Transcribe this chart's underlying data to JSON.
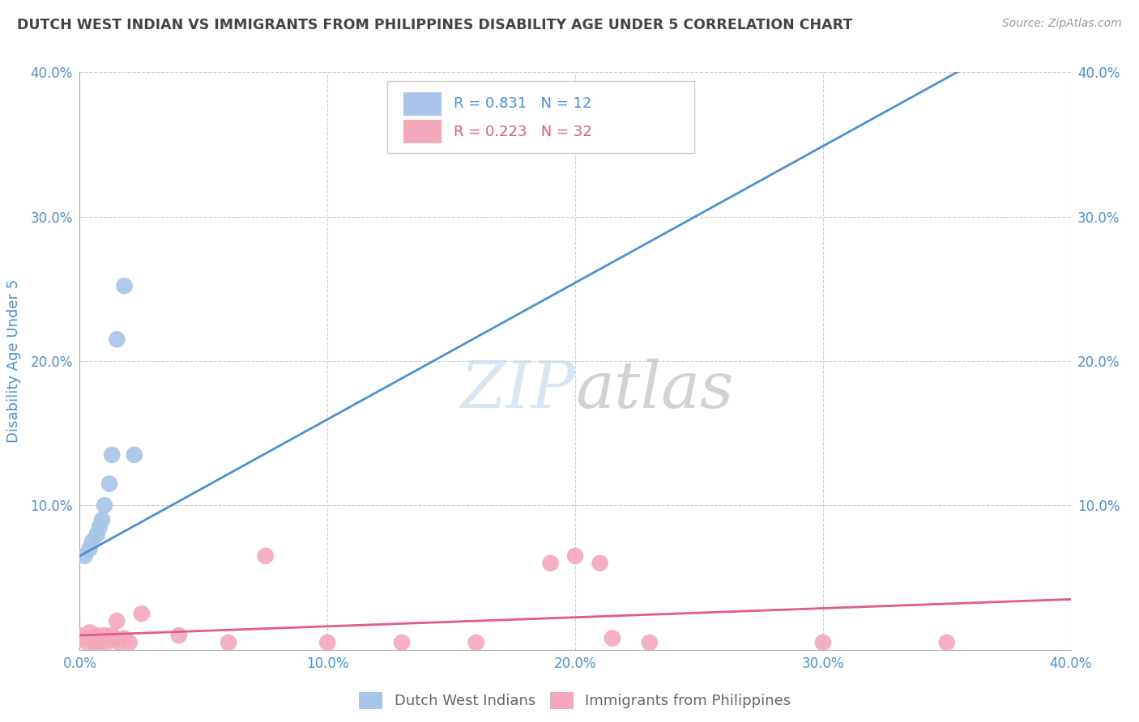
{
  "title": "DUTCH WEST INDIAN VS IMMIGRANTS FROM PHILIPPINES DISABILITY AGE UNDER 5 CORRELATION CHART",
  "source": "Source: ZipAtlas.com",
  "ylabel": "Disability Age Under 5",
  "xlim": [
    0.0,
    0.4
  ],
  "ylim": [
    0.0,
    0.4
  ],
  "xtick_vals": [
    0.0,
    0.1,
    0.2,
    0.3,
    0.4
  ],
  "ytick_vals": [
    0.0,
    0.1,
    0.2,
    0.3,
    0.4
  ],
  "blue_R": 0.831,
  "blue_N": 12,
  "pink_R": 0.223,
  "pink_N": 32,
  "blue_color": "#a8c4e8",
  "pink_color": "#f4a8bc",
  "blue_line_color": "#4a90d9",
  "pink_line_color": "#e05a8a",
  "blue_scatter_x": [
    0.002,
    0.004,
    0.005,
    0.007,
    0.008,
    0.009,
    0.01,
    0.012,
    0.013,
    0.015,
    0.018,
    0.022
  ],
  "blue_scatter_y": [
    0.065,
    0.07,
    0.075,
    0.08,
    0.085,
    0.09,
    0.1,
    0.115,
    0.135,
    0.215,
    0.252,
    0.135
  ],
  "pink_scatter_x": [
    0.0,
    0.002,
    0.003,
    0.004,
    0.005,
    0.006,
    0.007,
    0.008,
    0.009,
    0.01,
    0.011,
    0.012,
    0.013,
    0.014,
    0.015,
    0.016,
    0.018,
    0.02,
    0.025,
    0.04,
    0.06,
    0.075,
    0.1,
    0.13,
    0.16,
    0.19,
    0.2,
    0.21,
    0.215,
    0.23,
    0.3,
    0.35
  ],
  "pink_scatter_y": [
    0.01,
    0.008,
    0.005,
    0.012,
    0.008,
    0.005,
    0.01,
    0.005,
    0.008,
    0.01,
    0.005,
    0.008,
    0.01,
    0.008,
    0.02,
    0.005,
    0.008,
    0.005,
    0.025,
    0.01,
    0.005,
    0.065,
    0.005,
    0.005,
    0.005,
    0.06,
    0.065,
    0.06,
    0.008,
    0.005,
    0.005,
    0.005
  ],
  "blue_line_x": [
    0.0,
    0.37
  ],
  "blue_line_y": [
    0.065,
    0.415
  ],
  "pink_line_x": [
    0.0,
    0.4
  ],
  "pink_line_y": [
    0.01,
    0.035
  ],
  "watermark_zip": "ZIP",
  "watermark_atlas": "atlas",
  "background_color": "#ffffff",
  "grid_color": "#c8c8c8",
  "title_color": "#444444",
  "axis_color": "#4a90d9",
  "legend_label1": "Dutch West Indians",
  "legend_label2": "Immigrants from Philippines"
}
